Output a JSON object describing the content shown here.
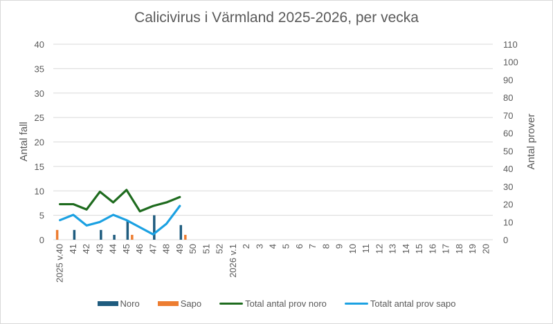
{
  "chart_data": {
    "type": "bar+line",
    "title": "Calicivirus i Värmland 2025-2026, per vecka",
    "xlabel": "",
    "ylabel": "Antal fall",
    "ylabel_right": "Antal prover",
    "ylim": [
      0,
      40
    ],
    "ylim_right": [
      0,
      110
    ],
    "yticks": [
      0,
      5,
      10,
      15,
      20,
      25,
      30,
      35,
      40
    ],
    "yticks_right": [
      0,
      10,
      20,
      30,
      40,
      50,
      60,
      70,
      80,
      90,
      100,
      110
    ],
    "grid": true,
    "legend_position": "bottom",
    "categories": [
      "2025 v.40",
      "41",
      "42",
      "43",
      "44",
      "45",
      "46",
      "47",
      "48",
      "49",
      "50",
      "51",
      "52",
      "2026 v.1",
      "2",
      "3",
      "4",
      "5",
      "6",
      "7",
      "8",
      "9",
      "10",
      "11",
      "12",
      "13",
      "14",
      "15",
      "16",
      "17",
      "18",
      "19",
      "20"
    ],
    "series": [
      {
        "name": "Noro",
        "type": "bar",
        "axis": "left",
        "color": "#1f5c7f",
        "values": [
          0,
          2,
          0,
          2,
          1,
          4,
          0,
          5,
          0,
          3,
          null,
          null,
          null,
          null,
          null,
          null,
          null,
          null,
          null,
          null,
          null,
          null,
          null,
          null,
          null,
          null,
          null,
          null,
          null,
          null,
          null,
          null,
          null
        ]
      },
      {
        "name": "Sapo",
        "type": "bar",
        "axis": "left",
        "color": "#ed7d31",
        "values": [
          2,
          0,
          0,
          0,
          0,
          1,
          0,
          0,
          0,
          1,
          null,
          null,
          null,
          null,
          null,
          null,
          null,
          null,
          null,
          null,
          null,
          null,
          null,
          null,
          null,
          null,
          null,
          null,
          null,
          null,
          null,
          null,
          null
        ]
      },
      {
        "name": "Total antal prov noro",
        "type": "line",
        "axis": "right",
        "color": "#1e6b1e",
        "values": [
          20,
          20,
          17,
          27,
          21,
          28,
          16,
          19,
          21,
          24,
          null,
          null,
          null,
          null,
          null,
          null,
          null,
          null,
          null,
          null,
          null,
          null,
          null,
          null,
          null,
          null,
          null,
          null,
          null,
          null,
          null,
          null,
          null
        ]
      },
      {
        "name": "Totalt antal prov sapo",
        "type": "line",
        "axis": "right",
        "color": "#1ba1e2",
        "values": [
          11,
          14,
          8,
          10,
          14,
          11,
          7,
          3,
          9,
          19,
          null,
          null,
          null,
          null,
          null,
          null,
          null,
          null,
          null,
          null,
          null,
          null,
          null,
          null,
          null,
          null,
          null,
          null,
          null,
          null,
          null,
          null,
          null
        ]
      }
    ]
  },
  "legend": {
    "noro": "Noro",
    "sapo": "Sapo",
    "total_noro": "Total antal prov noro",
    "total_sapo": "Totalt antal prov sapo"
  }
}
